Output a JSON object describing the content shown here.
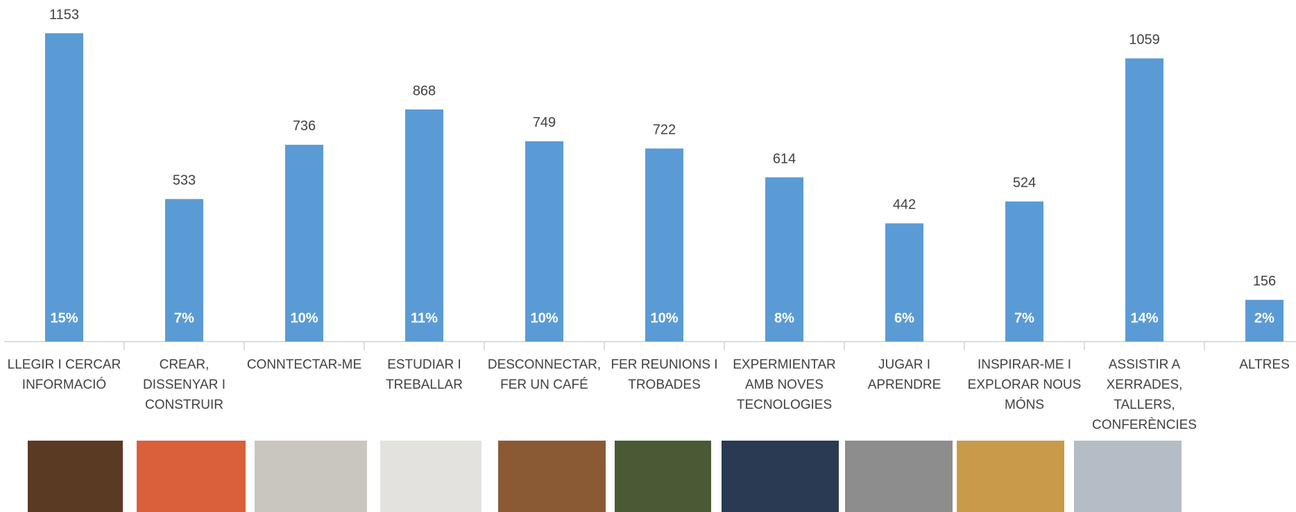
{
  "chart_data": {
    "type": "bar",
    "categories": [
      "LLEGIR I CERCAR INFORMACIÓ",
      "CREAR, DISSENYAR I CONSTRUIR",
      "CONNTECTAR-ME",
      "ESTUDIAR I TREBALLAR",
      "DESCONNECTAR, FER UN CAFÉ",
      "FER REUNIONS I TROBADES",
      "EXPERMIENTAR AMB NOVES TECNOLOGIES",
      "JUGAR I APRENDRE",
      "INSPIRAR-ME I EXPLORAR NOUS MÓNS",
      "ASSISTIR A XERRADES, TALLERS, CONFERÈNCIES",
      "ALTRES"
    ],
    "series": [
      {
        "values": [
          1153,
          533,
          736,
          868,
          749,
          722,
          614,
          442,
          524,
          1059,
          156
        ],
        "color": "#5b9bd5"
      },
      {
        "values": [
          15,
          7,
          10,
          11,
          10,
          10,
          8,
          6,
          7,
          14,
          2
        ],
        "value_labels": [
          "15%",
          "7%",
          "10%",
          "11%",
          "10%",
          "10%",
          "8%",
          "6%",
          "7%",
          "14%",
          "2%"
        ]
      }
    ]
  }
}
